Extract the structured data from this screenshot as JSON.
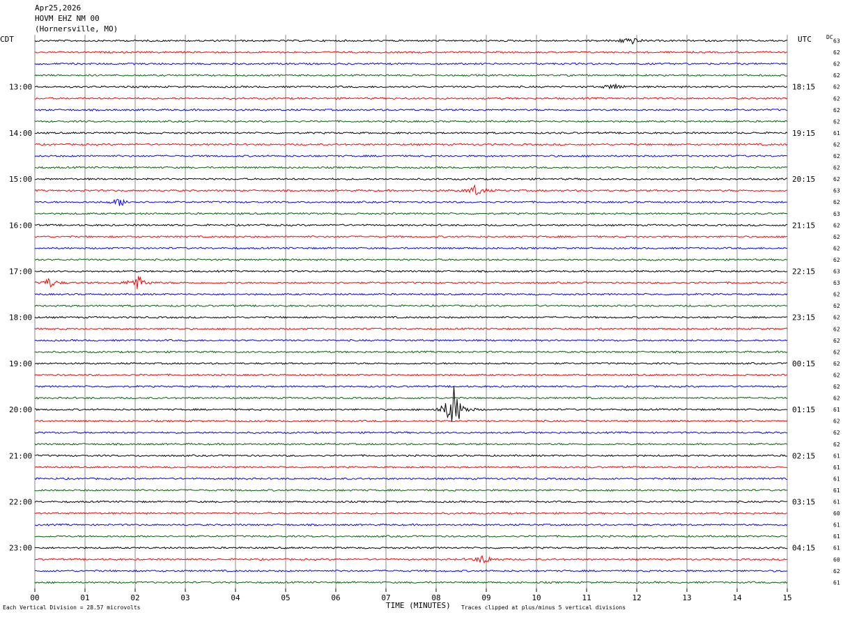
{
  "header": {
    "date": "Apr25,2026",
    "station": "HOVM EHZ NM 00",
    "location": "(Hornersville, MO)"
  },
  "chart_data": {
    "type": "line",
    "title": "HOVM EHZ NM 00",
    "left_timezone": "CDT",
    "right_timezone": "UTC",
    "dc_label": "DC",
    "xlabel": "TIME (MINUTES)",
    "x_ticks": [
      "00",
      "01",
      "02",
      "03",
      "04",
      "05",
      "06",
      "07",
      "08",
      "09",
      "10",
      "11",
      "12",
      "13",
      "14",
      "15"
    ],
    "xlim": [
      0,
      15
    ],
    "left_hour_labels": [
      "13:00",
      "14:00",
      "15:00",
      "16:00",
      "17:00",
      "18:00",
      "19:00",
      "20:00",
      "21:00",
      "22:00",
      "23:00"
    ],
    "right_hour_labels": [
      "18:15",
      "19:15",
      "20:15",
      "21:15",
      "22:15",
      "23:15",
      "00:15",
      "01:15",
      "02:15",
      "03:15",
      "04:15"
    ],
    "trace_colors": [
      "#000000",
      "#ff0000",
      "#0000ff",
      "#006400"
    ],
    "dc_values": [
      "63",
      "62",
      "62",
      "62",
      "62",
      "62",
      "62",
      "62",
      "61",
      "62",
      "62",
      "62",
      "62",
      "63",
      "62",
      "63",
      "62",
      "62",
      "62",
      "62",
      "63",
      "63",
      "62",
      "62",
      "62",
      "62",
      "62",
      "62",
      "62",
      "62",
      "62",
      "62",
      "61",
      "62",
      "62",
      "62",
      "61",
      "61",
      "61",
      "61",
      "61",
      "60",
      "61",
      "61",
      "61",
      "60",
      "62",
      "61"
    ],
    "events": [
      {
        "trace": 0,
        "minute": 11.85,
        "amplitude": 1.2
      },
      {
        "trace": 4,
        "minute": 11.55,
        "amplitude": 0.8
      },
      {
        "trace": 13,
        "minute": 8.8,
        "amplitude": 1.5
      },
      {
        "trace": 14,
        "minute": 1.7,
        "amplitude": 1.0
      },
      {
        "trace": 21,
        "minute": 0.3,
        "amplitude": 1.2
      },
      {
        "trace": 21,
        "minute": 2.05,
        "amplitude": 2.0
      },
      {
        "trace": 32,
        "minute": 8.35,
        "amplitude": 6.0
      },
      {
        "trace": 45,
        "minute": 8.95,
        "amplitude": 1.2
      }
    ],
    "footer_left": "Each Vertical Division =   28.57 microvolts",
    "footer_right": "Traces clipped at plus/minus 5 vertical divisions"
  }
}
